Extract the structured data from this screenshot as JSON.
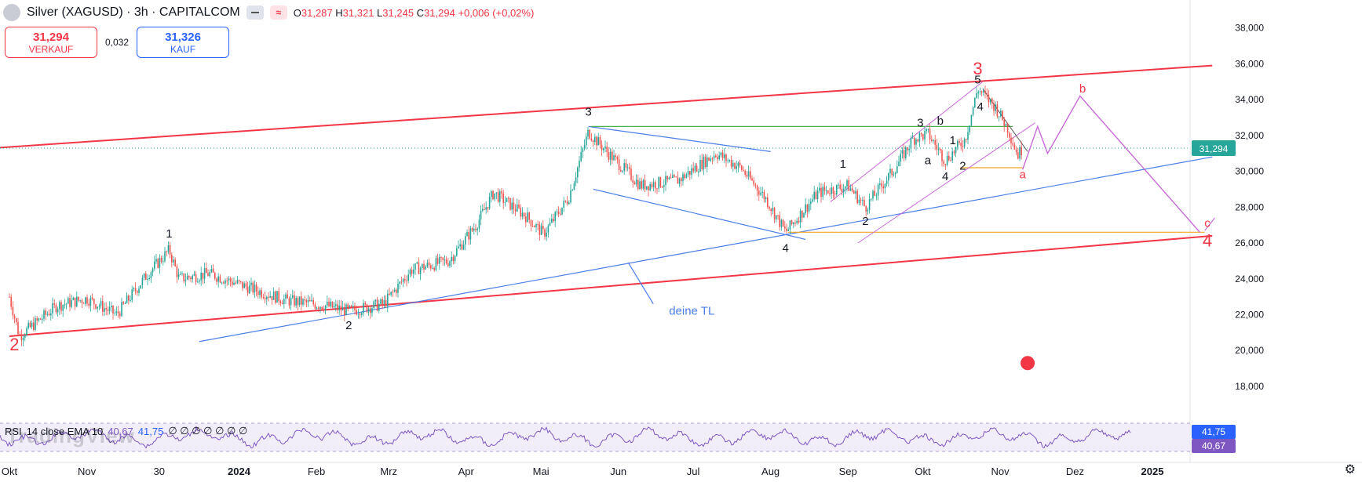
{
  "header": {
    "symbol_title": "Silver (XAGUSD) · 3h · CAPITALCOM",
    "open_label": "O",
    "open": "31,287",
    "high_label": "H",
    "high": "31,321",
    "low_label": "L",
    "low": "31,245",
    "close_label": "C",
    "close": "31,294",
    "change": "+0,006 (+0,02%)",
    "btn_hide": "≈"
  },
  "trade": {
    "sell_price": "31,294",
    "sell_label": "VERKAUF",
    "spread": "0,032",
    "buy_price": "31,326",
    "buy_label": "KAUF"
  },
  "rsi_legend": {
    "name": "RSI",
    "params": "14 close EMA 10",
    "v1": "40,67",
    "v2": "41,75",
    "na": "∅ ∅ ∅ ∅ ∅ ∅ ∅"
  },
  "watermark": "TradingView",
  "colors": {
    "up": "#26a69a",
    "down": "#ef5350",
    "red_line": "#f23645",
    "blue_line": "#4a7ee8",
    "violet": "#c86ad8",
    "rsi": "#7e57c2",
    "orange": "#f5a623",
    "green": "#4caf50"
  },
  "chart_data": {
    "type": "candlestick",
    "instrument": "Silver (XAGUSD)",
    "timeframe": "3h",
    "y_ticks": [
      "38,000",
      "36,000",
      "34,000",
      "32,000",
      "30,000",
      "28,000",
      "26,000",
      "24,000",
      "22,000",
      "20,000",
      "18,000"
    ],
    "y_tick_values": [
      38,
      36,
      34,
      32,
      30,
      28,
      26,
      24,
      22,
      20,
      18
    ],
    "ylim": [
      16.6,
      38.9
    ],
    "x_ticks": [
      "Okt",
      "Nov",
      "30",
      "2024",
      "Feb",
      "Mrz",
      "Apr",
      "Mai",
      "Jun",
      "Jul",
      "Aug",
      "Sep",
      "Okt",
      "Nov",
      "Dez",
      "2025"
    ],
    "last_price_label": "31,294",
    "last_price": 31.294,
    "rsi_labels": [
      "41,75",
      "40,67"
    ],
    "rsi_values": [
      41.75,
      40.67
    ],
    "price_path": [
      {
        "t": "2023-10-01",
        "p": 23.0
      },
      {
        "t": "2023-10-05",
        "p": 20.8
      },
      {
        "t": "2023-10-20",
        "p": 22.5
      },
      {
        "t": "2023-11-01",
        "p": 22.9
      },
      {
        "t": "2023-11-13",
        "p": 22.0
      },
      {
        "t": "2023-11-25",
        "p": 24.2
      },
      {
        "t": "2023-12-04",
        "p": 25.6
      },
      {
        "t": "2023-12-08",
        "p": 24.0
      },
      {
        "t": "2023-12-20",
        "p": 24.3
      },
      {
        "t": "2024-01-05",
        "p": 23.5
      },
      {
        "t": "2024-01-20",
        "p": 22.8
      },
      {
        "t": "2024-02-05",
        "p": 22.5
      },
      {
        "t": "2024-02-14",
        "p": 22.2
      },
      {
        "t": "2024-02-28",
        "p": 22.6
      },
      {
        "t": "2024-03-10",
        "p": 24.5
      },
      {
        "t": "2024-03-25",
        "p": 25.0
      },
      {
        "t": "2024-04-05",
        "p": 27.0
      },
      {
        "t": "2024-04-12",
        "p": 28.8
      },
      {
        "t": "2024-04-25",
        "p": 27.5
      },
      {
        "t": "2024-05-02",
        "p": 26.5
      },
      {
        "t": "2024-05-12",
        "p": 28.5
      },
      {
        "t": "2024-05-20",
        "p": 32.2
      },
      {
        "t": "2024-05-28",
        "p": 31.0
      },
      {
        "t": "2024-06-10",
        "p": 29.2
      },
      {
        "t": "2024-06-25",
        "p": 29.5
      },
      {
        "t": "2024-07-10",
        "p": 31.0
      },
      {
        "t": "2024-07-20",
        "p": 30.2
      },
      {
        "t": "2024-07-30",
        "p": 28.5
      },
      {
        "t": "2024-08-07",
        "p": 26.6
      },
      {
        "t": "2024-08-20",
        "p": 28.8
      },
      {
        "t": "2024-09-01",
        "p": 29.2
      },
      {
        "t": "2024-09-08",
        "p": 28.0
      },
      {
        "t": "2024-09-20",
        "p": 30.2
      },
      {
        "t": "2024-09-27",
        "p": 31.8
      },
      {
        "t": "2024-10-03",
        "p": 32.1
      },
      {
        "t": "2024-10-10",
        "p": 30.6
      },
      {
        "t": "2024-10-18",
        "p": 31.8
      },
      {
        "t": "2024-10-23",
        "p": 34.6
      },
      {
        "t": "2024-10-30",
        "p": 33.6
      },
      {
        "t": "2024-11-04",
        "p": 32.4
      },
      {
        "t": "2024-11-08",
        "p": 30.9
      },
      {
        "t": "2024-11-10",
        "p": 31.3
      }
    ],
    "lines": [
      {
        "name": "upper-channel",
        "color": "red",
        "from": {
          "t": "2023-09-25",
          "p": 31.3
        },
        "to": {
          "t": "2025-01-25",
          "p": 35.9
        }
      },
      {
        "name": "lower-channel",
        "color": "red",
        "from": {
          "t": "2023-10-01",
          "p": 20.8
        },
        "to": {
          "t": "2025-01-25",
          "p": 26.4
        }
      },
      {
        "name": "trendline",
        "color": "blue",
        "from": {
          "t": "2023-12-16",
          "p": 20.5
        },
        "to": {
          "t": "2025-01-25",
          "p": 30.8
        }
      },
      {
        "name": "may-jul-resistance",
        "color": "blue",
        "from": {
          "t": "2024-05-20",
          "p": 32.5
        },
        "to": {
          "t": "2024-08-01",
          "p": 31.1
        }
      },
      {
        "name": "may-aug-support",
        "color": "blue",
        "from": {
          "t": "2024-05-22",
          "p": 29.0
        },
        "to": {
          "t": "2024-08-15",
          "p": 26.2
        }
      },
      {
        "name": "green-level",
        "color": "green",
        "from": {
          "t": "2024-05-21",
          "p": 32.5
        },
        "to": {
          "t": "2024-11-06",
          "p": 32.5
        }
      },
      {
        "name": "orange-level-low",
        "color": "orange",
        "from": {
          "t": "2024-08-08",
          "p": 26.6
        },
        "to": {
          "t": "2025-01-22",
          "p": 26.6
        }
      },
      {
        "name": "orange-level-mid",
        "color": "orange",
        "from": {
          "t": "2024-10-16",
          "p": 30.2
        },
        "to": {
          "t": "2024-11-10",
          "p": 30.2
        }
      }
    ],
    "projection": [
      {
        "t": "2024-11-10",
        "p": 30.1
      },
      {
        "t": "2024-11-16",
        "p": 32.5
      },
      {
        "t": "2024-11-20",
        "p": 31.0
      },
      {
        "t": "2024-12-03",
        "p": 34.2
      },
      {
        "t": "2025-01-20",
        "p": 26.6
      }
    ],
    "wave_labels": [
      {
        "text": "2",
        "t": "2023-10-03",
        "p": 20.0,
        "color": "red"
      },
      {
        "text": "1",
        "t": "2023-12-04",
        "p": 26.3,
        "color": "black"
      },
      {
        "text": "2",
        "t": "2024-02-14",
        "p": 21.2,
        "color": "black"
      },
      {
        "text": "3",
        "t": "2024-05-20",
        "p": 33.1,
        "color": "black"
      },
      {
        "text": "4",
        "t": "2024-08-07",
        "p": 25.5,
        "color": "black"
      },
      {
        "text": "2",
        "t": "2024-09-08",
        "p": 27.0,
        "color": "black"
      },
      {
        "text": "3",
        "t": "2024-09-30",
        "p": 32.5,
        "color": "black"
      },
      {
        "text": "4",
        "t": "2024-10-10",
        "p": 29.5,
        "color": "black"
      },
      {
        "text": "5",
        "t": "2024-10-23",
        "p": 34.9,
        "color": "black"
      },
      {
        "text": "3",
        "t": "2024-10-23",
        "p": 35.4,
        "color": "red"
      },
      {
        "text": "a",
        "t": "2024-11-10",
        "p": 29.6,
        "color": "red"
      },
      {
        "text": "b",
        "t": "2024-12-04",
        "p": 34.4,
        "color": "red"
      },
      {
        "text": "c",
        "t": "2025-01-23",
        "p": 26.9,
        "color": "red"
      },
      {
        "text": "4",
        "t": "2025-01-23",
        "p": 25.8,
        "color": "red"
      },
      {
        "text": "a",
        "t": "2024-10-03",
        "p": 30.4,
        "color": "black"
      },
      {
        "text": "b",
        "t": "2024-10-08",
        "p": 32.6,
        "color": "black"
      },
      {
        "text": "1",
        "t": "2024-10-13",
        "p": 31.5,
        "color": "black"
      },
      {
        "text": "2",
        "t": "2024-10-17",
        "p": 30.1,
        "color": "black"
      },
      {
        "text": "4",
        "t": "2024-10-24",
        "p": 33.4,
        "color": "black"
      },
      {
        "text": "1",
        "t": "2024-08-30",
        "p": 30.2,
        "color": "black"
      }
    ],
    "annotations": [
      {
        "text": "deine TL",
        "t": "2024-06-15",
        "p": 22.0,
        "color": "blue"
      }
    ]
  }
}
